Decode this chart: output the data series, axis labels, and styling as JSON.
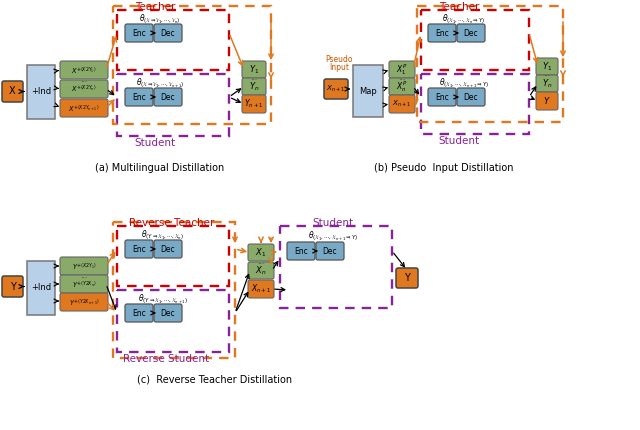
{
  "title_a": "(a) Multilingual Distillation",
  "title_b": "(b) Pseudo  Input Distillation",
  "title_c": "(c)  Reverse Teacher Distillation",
  "label_teacher": "Teacher",
  "label_student": "Student",
  "label_reverse_teacher": "Reverse Teacher",
  "label_reverse_student": "Reverse Student",
  "col_orange": "#E07820",
  "col_green": "#8AAA6A",
  "col_blue_l": "#B8D0E8",
  "col_blue_b": "#78AAC8",
  "col_red": "#CC0000",
  "col_purple": "#882299",
  "col_dark_orange": "#CC5500",
  "bg": "#FFFFFF"
}
